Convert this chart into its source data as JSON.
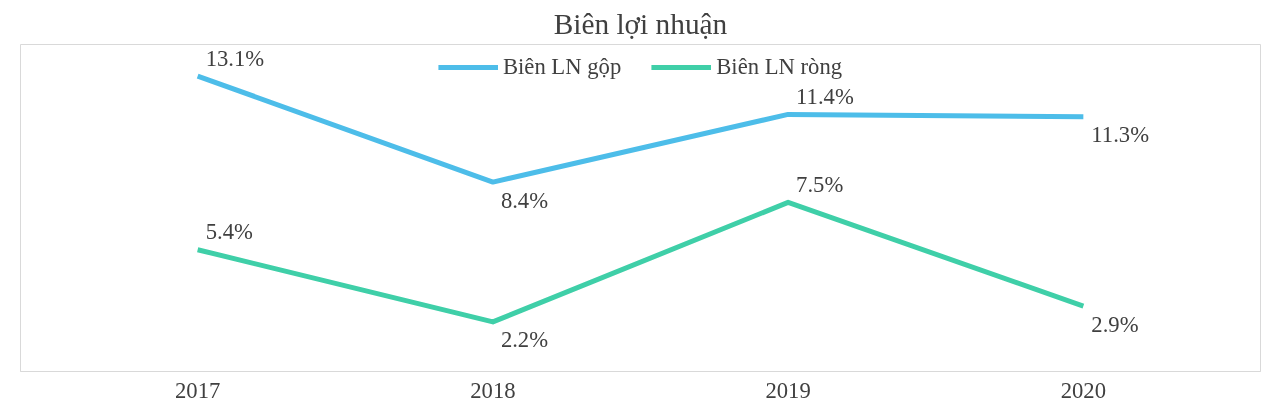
{
  "chart_data": {
    "type": "line",
    "title": "Biên lợi nhuận",
    "categories": [
      "2017",
      "2018",
      "2019",
      "2020"
    ],
    "series": [
      {
        "name": "Biên LN gộp",
        "color": "#4dbde9",
        "values": [
          13.1,
          8.4,
          11.4,
          11.3
        ],
        "value_labels": [
          "13.1%",
          "8.4%",
          "11.4%",
          "11.3%"
        ]
      },
      {
        "name": "Biên LN ròng",
        "color": "#3fcfa8",
        "values": [
          5.4,
          2.2,
          7.5,
          2.9
        ],
        "value_labels": [
          "5.4%",
          "2.2%",
          "7.5%",
          "2.9%"
        ]
      }
    ],
    "ylim": [
      0,
      14.5
    ],
    "tick_labels": "x",
    "grid": false,
    "legend": "top",
    "marker": "none",
    "line_style": "solid"
  }
}
